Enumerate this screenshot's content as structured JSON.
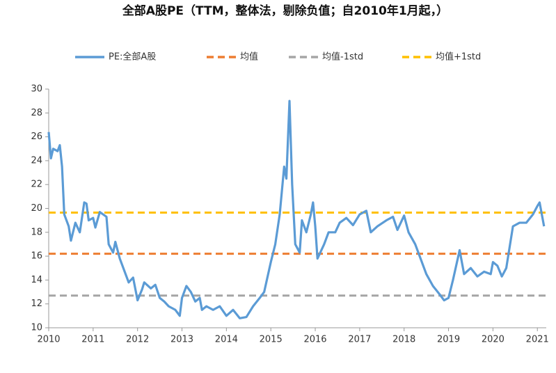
{
  "chart_data": {
    "type": "line",
    "title": "全部A股PE（TTM，整体法，剔除负值；自2010年1月起，）",
    "xlim": [
      2010,
      2021.2
    ],
    "xticks": [
      2010,
      2011,
      2012,
      2013,
      2014,
      2015,
      2016,
      2017,
      2018,
      2019,
      2020,
      2021
    ],
    "ylim": [
      10,
      30
    ],
    "yticks": [
      10,
      12,
      14,
      16,
      18,
      20,
      22,
      24,
      26,
      28,
      30
    ],
    "series": [
      {
        "name": "PE:全部A股",
        "color": "#5b9bd5",
        "dashed": false,
        "x": [
          2010.0,
          2010.05,
          2010.1,
          2010.2,
          2010.25,
          2010.3,
          2010.35,
          2010.45,
          2010.5,
          2010.6,
          2010.7,
          2010.8,
          2010.85,
          2010.9,
          2011.0,
          2011.05,
          2011.15,
          2011.3,
          2011.35,
          2011.45,
          2011.5,
          2011.6,
          2011.7,
          2011.8,
          2011.9,
          2012.0,
          2012.1,
          2012.15,
          2012.3,
          2012.4,
          2012.5,
          2012.6,
          2012.7,
          2012.85,
          2012.95,
          2013.0,
          2013.1,
          2013.2,
          2013.3,
          2013.4,
          2013.45,
          2013.55,
          2013.7,
          2013.85,
          2014.0,
          2014.15,
          2014.3,
          2014.45,
          2014.6,
          2014.75,
          2014.85,
          2015.0,
          2015.1,
          2015.2,
          2015.3,
          2015.35,
          2015.42,
          2015.48,
          2015.55,
          2015.65,
          2015.7,
          2015.8,
          2015.9,
          2015.95,
          2016.0,
          2016.05,
          2016.1,
          2016.2,
          2016.3,
          2016.45,
          2016.55,
          2016.7,
          2016.85,
          2017.0,
          2017.15,
          2017.25,
          2017.4,
          2017.6,
          2017.75,
          2017.85,
          2018.0,
          2018.1,
          2018.25,
          2018.35,
          2018.5,
          2018.65,
          2018.8,
          2018.9,
          2019.0,
          2019.1,
          2019.25,
          2019.35,
          2019.5,
          2019.65,
          2019.8,
          2019.95,
          2020.0,
          2020.1,
          2020.2,
          2020.3,
          2020.45,
          2020.6,
          2020.75,
          2020.9,
          2021.0,
          2021.05,
          2021.15
        ],
        "values": [
          26.4,
          24.2,
          25.0,
          24.8,
          25.3,
          23.5,
          19.5,
          18.5,
          17.3,
          18.8,
          18.0,
          20.5,
          20.4,
          19.0,
          19.2,
          18.4,
          19.7,
          19.3,
          17.0,
          16.3,
          17.2,
          15.8,
          14.8,
          13.8,
          14.2,
          12.3,
          13.2,
          13.8,
          13.3,
          13.6,
          12.5,
          12.2,
          11.8,
          11.5,
          11.0,
          12.5,
          13.5,
          13.0,
          12.2,
          12.5,
          11.5,
          11.8,
          11.5,
          11.8,
          11.0,
          11.5,
          10.8,
          10.9,
          11.8,
          12.5,
          13.0,
          15.5,
          17.0,
          19.5,
          23.5,
          22.5,
          29.0,
          22.0,
          17.0,
          16.3,
          19.0,
          18.0,
          19.5,
          20.5,
          18.5,
          15.8,
          16.2,
          17.0,
          18.0,
          18.0,
          18.8,
          19.2,
          18.6,
          19.5,
          19.8,
          18.0,
          18.5,
          19.0,
          19.3,
          18.2,
          19.4,
          18.0,
          17.0,
          16.0,
          14.5,
          13.5,
          12.8,
          12.3,
          12.5,
          14.0,
          16.5,
          14.5,
          15.0,
          14.3,
          14.7,
          14.5,
          15.5,
          15.2,
          14.3,
          15.0,
          18.5,
          18.8,
          18.8,
          19.5,
          20.2,
          20.5,
          18.5
        ]
      },
      {
        "name": "均值",
        "color": "#ed7d31",
        "dashed": true,
        "x": [
          2010.0,
          2021.2
        ],
        "values": [
          16.2,
          16.2
        ]
      },
      {
        "name": "均值-1std",
        "color": "#a5a5a5",
        "dashed": true,
        "x": [
          2010.0,
          2021.2
        ],
        "values": [
          12.7,
          12.7
        ]
      },
      {
        "name": "均值+1std",
        "color": "#ffc000",
        "dashed": true,
        "x": [
          2010.0,
          2021.2
        ],
        "values": [
          19.65,
          19.65
        ]
      }
    ]
  }
}
